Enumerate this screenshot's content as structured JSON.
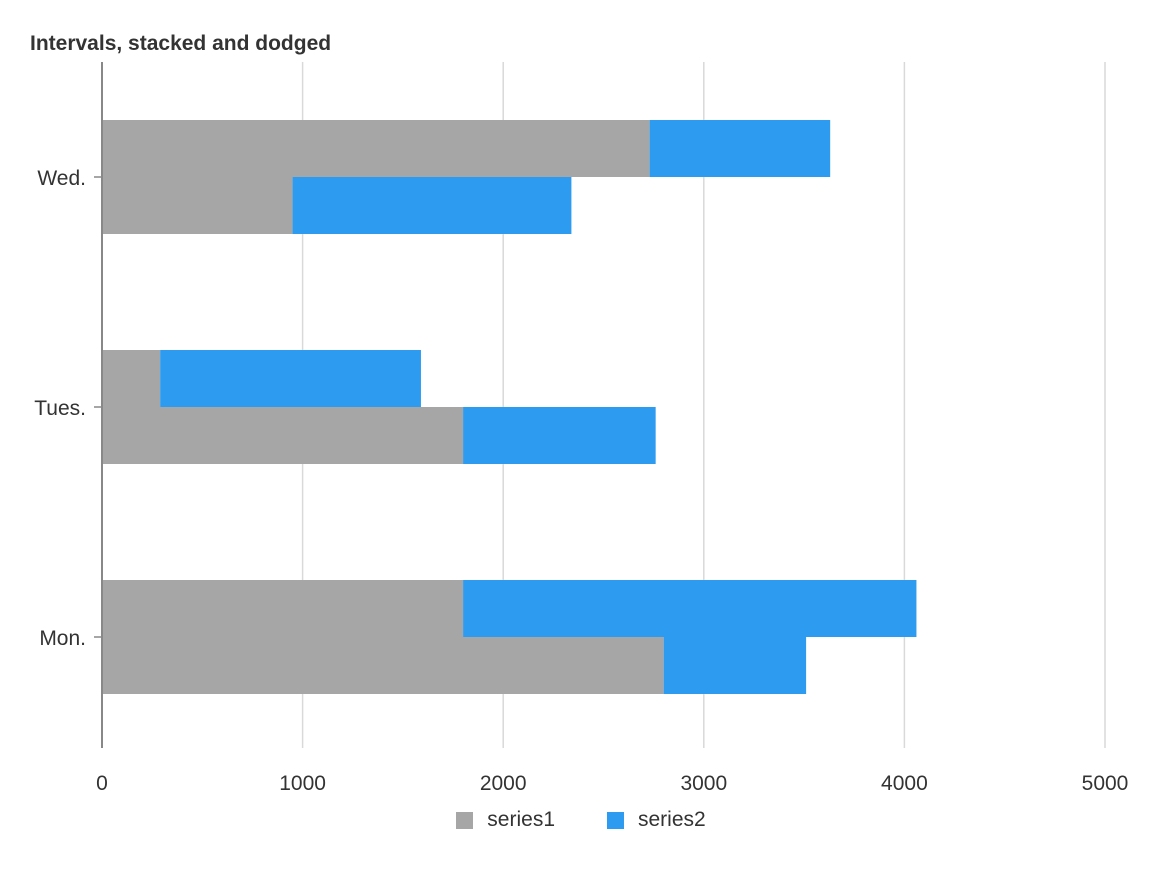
{
  "chart_data": {
    "type": "bar",
    "orientation": "horizontal",
    "title": "Intervals, stacked and dodged",
    "xlabel": "",
    "ylabel": "",
    "xlim": [
      0,
      5000
    ],
    "x_ticks": [
      "0",
      "1000",
      "2000",
      "3000",
      "4000",
      "5000"
    ],
    "categories": [
      "Mon.",
      "Tues.",
      "Wed."
    ],
    "grid": true,
    "legend_position": "bottom-center",
    "groups": [
      {
        "category": "Mon.",
        "bars": [
          {
            "series1": 1800,
            "series2": 2260
          },
          {
            "series1": 2800,
            "series2": 710
          }
        ]
      },
      {
        "category": "Tues.",
        "bars": [
          {
            "series1": 290,
            "series2": 1300
          },
          {
            "series1": 1800,
            "series2": 960
          }
        ]
      },
      {
        "category": "Wed.",
        "bars": [
          {
            "series1": 2730,
            "series2": 900
          },
          {
            "series1": 950,
            "series2": 1390
          }
        ]
      }
    ],
    "series": [
      {
        "name": "series1",
        "color": "#a6a6a6"
      },
      {
        "name": "series2",
        "color": "#2d9bf0"
      }
    ]
  }
}
